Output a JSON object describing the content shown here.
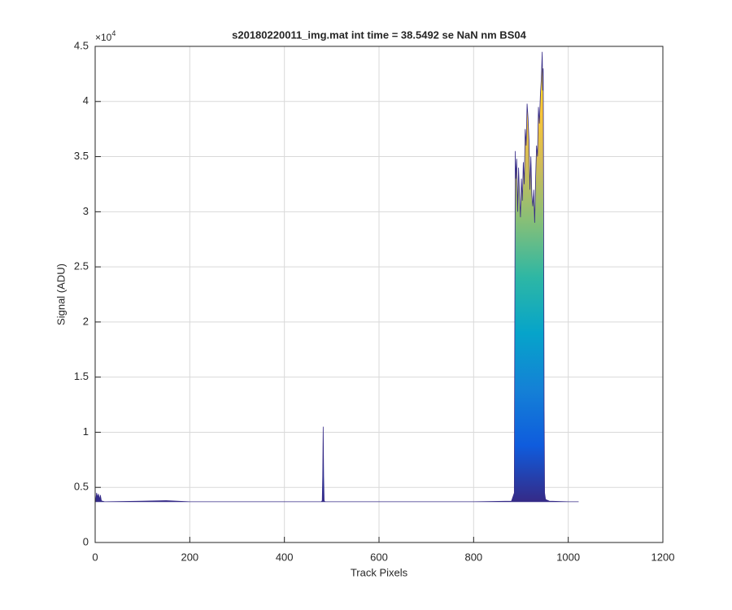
{
  "chart_data": {
    "type": "area",
    "title": "s20180220011_img.mat int time = 38.5492 se  NaN nm BS04",
    "x_label": "Track Pixels",
    "y_label": "Signal (ADU)",
    "y_exponent": {
      "base": "×10",
      "power": "4"
    },
    "x": [
      1,
      3,
      5,
      7,
      9,
      11,
      13,
      15,
      20,
      100,
      150,
      200,
      300,
      400,
      478,
      480,
      481,
      482,
      483,
      484,
      486,
      600,
      700,
      800,
      880,
      886,
      887,
      888,
      889,
      891,
      893,
      895,
      897,
      899,
      901,
      903,
      905,
      907,
      909,
      911,
      913,
      915,
      917,
      919,
      921,
      923,
      925,
      927,
      929,
      931,
      933,
      935,
      937,
      939,
      941,
      943,
      945,
      946,
      947,
      948,
      949,
      950,
      952,
      960,
      1000,
      1022
    ],
    "values": [
      3800,
      4500,
      4100,
      4400,
      3900,
      4300,
      3800,
      3750,
      3700,
      3750,
      3800,
      3700,
      3700,
      3700,
      3700,
      3800,
      6000,
      10500,
      6000,
      3800,
      3700,
      3700,
      3700,
      3700,
      3750,
      4500,
      20000,
      35500,
      33000,
      34800,
      30000,
      34000,
      31500,
      29500,
      33000,
      31000,
      34500,
      32500,
      37500,
      36000,
      39800,
      38500,
      36500,
      32000,
      35000,
      31500,
      30500,
      32000,
      29000,
      33000,
      36000,
      35000,
      39500,
      38000,
      40500,
      42000,
      44500,
      41000,
      43000,
      30000,
      12000,
      4500,
      3900,
      3750,
      3700,
      3700
    ],
    "colormap": [
      "#352a87",
      "#0f5cdd",
      "#1481d6",
      "#06a4ca",
      "#2eb7a4",
      "#87bf77",
      "#d1bb59",
      "#fec832",
      "#f9fb0e"
    ],
    "xlim": [
      0,
      1200
    ],
    "xticks": [
      0,
      200,
      400,
      600,
      800,
      1000,
      1200
    ],
    "ylim": [
      0,
      45000
    ],
    "yticks": [
      {
        "value": 0,
        "label": "0"
      },
      {
        "value": 5000,
        "label": "0.5"
      },
      {
        "value": 10000,
        "label": "1"
      },
      {
        "value": 15000,
        "label": "1.5"
      },
      {
        "value": 20000,
        "label": "2"
      },
      {
        "value": 25000,
        "label": "2.5"
      },
      {
        "value": 30000,
        "label": "3"
      },
      {
        "value": 35000,
        "label": "3.5"
      },
      {
        "value": 40000,
        "label": "4"
      },
      {
        "value": 45000,
        "label": "4.5"
      }
    ],
    "grid": true
  }
}
